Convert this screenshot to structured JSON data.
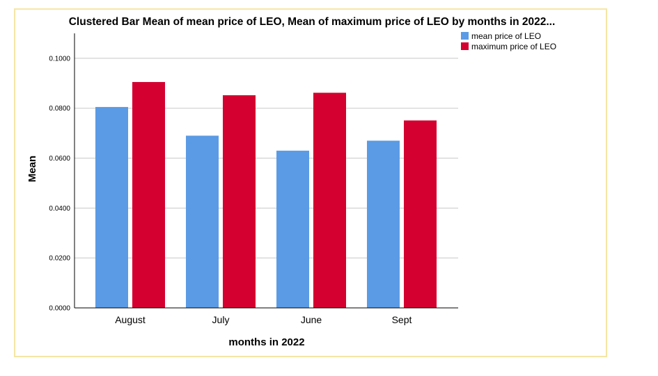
{
  "chart_data": {
    "type": "bar",
    "title": "Clustered Bar Mean of mean price of LEO, Mean of maximum price of LEO by months in 2022...",
    "xlabel": "months in 2022",
    "ylabel": "Mean",
    "categories": [
      "August",
      "July",
      "June",
      "Sept"
    ],
    "series": [
      {
        "name": "mean price of LEO",
        "values": [
          0.0805,
          0.069,
          0.063,
          0.067
        ],
        "color": "#5b9be5"
      },
      {
        "name": "maximum price of LEO",
        "values": [
          0.0905,
          0.0852,
          0.0862,
          0.0751
        ],
        "color": "#d4002f"
      }
    ],
    "ylim": [
      0,
      0.11
    ],
    "yticks": [
      0.0,
      0.02,
      0.04,
      0.06,
      0.08,
      0.1
    ],
    "ytick_labels": [
      "0.0000",
      "0.0200",
      "0.0400",
      "0.0600",
      "0.0800",
      "0.1000"
    ],
    "grid": true,
    "legend_position": "top-right"
  }
}
